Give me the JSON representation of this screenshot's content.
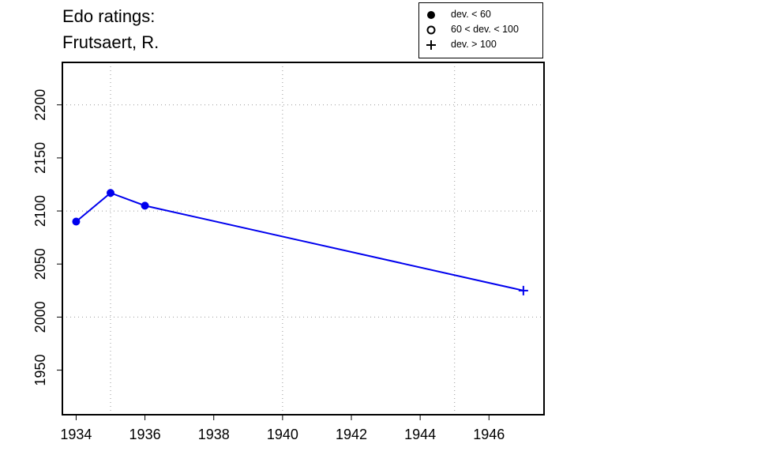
{
  "chart_data": {
    "type": "line",
    "title_lines": [
      "Edo ratings:",
      "Frutsaert, R."
    ],
    "xlabel": "",
    "ylabel": "",
    "xlim": [
      1933.6,
      1947.6
    ],
    "ylim": [
      1908,
      2240
    ],
    "x_ticks": [
      1934,
      1936,
      1938,
      1940,
      1942,
      1944,
      1946
    ],
    "y_ticks": [
      1950,
      2000,
      2050,
      2100,
      2150,
      2200
    ],
    "x_grid": [
      1935,
      1940,
      1945
    ],
    "y_grid": [
      2000,
      2100,
      2200
    ],
    "grid": true,
    "legend_position": "top-right",
    "legend": [
      {
        "symbol": "filled-circle",
        "label": "dev. < 60"
      },
      {
        "symbol": "open-circle",
        "label": "60 < dev. < 100"
      },
      {
        "symbol": "plus",
        "label": "dev. > 100"
      }
    ],
    "series": [
      {
        "color": "#0000ee",
        "points": [
          {
            "x": 1934,
            "y": 2090,
            "symbol": "filled-circle"
          },
          {
            "x": 1935,
            "y": 2117,
            "symbol": "filled-circle"
          },
          {
            "x": 1936,
            "y": 2105,
            "symbol": "filled-circle"
          },
          {
            "x": 1947,
            "y": 2025,
            "symbol": "plus"
          }
        ]
      }
    ]
  }
}
